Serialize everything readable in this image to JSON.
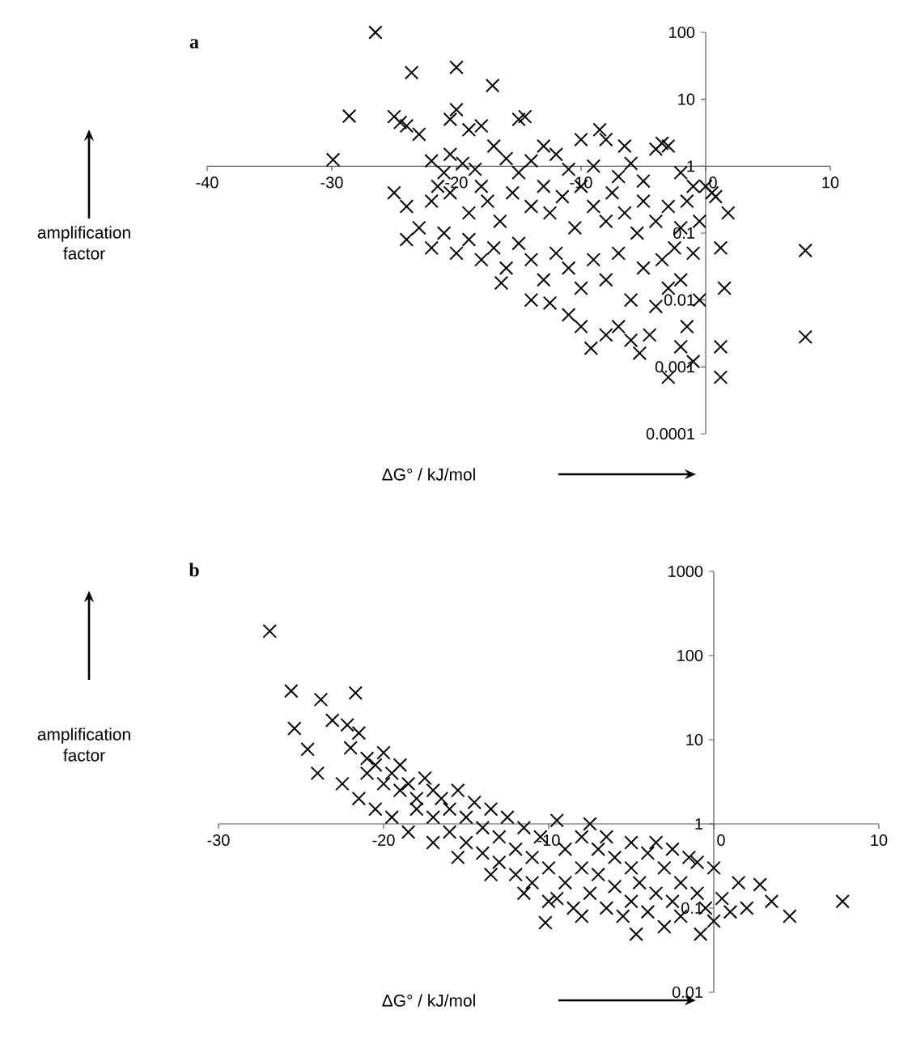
{
  "chart_data": [
    {
      "type": "scatter",
      "title": "a",
      "xlabel": "ΔG° / kJ/mol",
      "ylabel": "amplification factor",
      "log": "y",
      "marker": "cross",
      "xlim": [
        -40,
        10
      ],
      "ylim": [
        0.0001,
        100
      ],
      "xticks": [
        -40,
        -30,
        -20,
        -10,
        0,
        10
      ],
      "yticks": [
        0.0001,
        0.001,
        0.01,
        0.1,
        1,
        10,
        100
      ],
      "series": [
        {
          "color": "#000000",
          "x": [
            -26.5,
            -23.6,
            -20,
            -17.1,
            -28.6,
            -29.9,
            -25,
            -24.5,
            -24,
            -23,
            -20.5,
            -20,
            -19,
            -18,
            -17,
            -15,
            -14.5,
            -13,
            -12,
            -10,
            -8.5,
            -8,
            -6.5,
            -4,
            -3.5,
            -3,
            -22,
            -21,
            -20.5,
            -19.5,
            -18.5,
            -16,
            -15,
            -14,
            -11,
            -9,
            -7,
            -6,
            -5,
            -2,
            -1,
            0,
            0.8,
            1.8,
            -25,
            -24,
            -22,
            -21.5,
            -20.5,
            -19,
            -18,
            -17.5,
            -16.5,
            -15.5,
            -14,
            -13,
            -12.5,
            -11.5,
            -10.5,
            -10,
            -9,
            -8,
            -7.5,
            -6.5,
            -5.5,
            -5,
            -4,
            -3,
            -2,
            -1.5,
            -0.5,
            -24,
            -23,
            -22,
            -21,
            -20,
            -19,
            -18,
            -17,
            -16,
            -15,
            -14,
            -13,
            -12,
            -11,
            -10,
            -9,
            -8,
            -7,
            -6,
            -5,
            -4,
            -3.5,
            -3,
            -2.5,
            -2,
            -1,
            -0.5,
            -16.4,
            -14,
            -12.5,
            -11,
            -10,
            -9.2,
            -8,
            -7,
            -6,
            -5.3,
            -4.5,
            -3,
            -2,
            -1.5,
            -1,
            1.2,
            1.2,
            1.2,
            8,
            8,
            0.5,
            1.5
          ],
          "values": [
            100,
            25,
            30,
            16,
            5.6,
            1.25,
            5.5,
            4.5,
            4,
            3,
            5,
            7,
            3.5,
            4,
            2,
            5,
            5.5,
            2,
            1.5,
            2.5,
            3.5,
            2.5,
            2,
            1.8,
            2.2,
            2,
            1.2,
            0.8,
            1.5,
            1.1,
            0.9,
            1.3,
            0.8,
            1.2,
            0.9,
            1,
            0.7,
            1.1,
            0.6,
            0.8,
            0.5,
            0.5,
            0.35,
            0.2,
            0.4,
            0.25,
            0.3,
            0.5,
            0.4,
            0.2,
            0.5,
            0.3,
            0.15,
            0.4,
            0.25,
            0.5,
            0.2,
            0.35,
            0.12,
            0.5,
            0.25,
            0.15,
            0.4,
            0.2,
            0.1,
            0.3,
            0.15,
            0.25,
            0.12,
            0.3,
            0.15,
            0.08,
            0.12,
            0.06,
            0.1,
            0.05,
            0.08,
            0.04,
            0.06,
            0.03,
            0.07,
            0.04,
            0.02,
            0.05,
            0.03,
            0.015,
            0.04,
            0.02,
            0.05,
            0.01,
            0.03,
            0.008,
            0.04,
            0.015,
            0.06,
            0.02,
            0.05,
            0.01,
            0.018,
            0.01,
            0.009,
            0.006,
            0.004,
            0.0019,
            0.003,
            0.004,
            0.0025,
            0.0016,
            0.003,
            0.0007,
            0.002,
            0.004,
            0.0012,
            0.06,
            0.002,
            0.0007,
            0.055,
            0.0028,
            0.4,
            0.015
          ]
        }
      ]
    },
    {
      "type": "scatter",
      "title": "b",
      "xlabel": "ΔG° / kJ/mol",
      "ylabel": "amplification factor",
      "log": "y",
      "marker": "cross",
      "xlim": [
        -30,
        10
      ],
      "ylim": [
        0.01,
        1000
      ],
      "xticks": [
        -30,
        -20,
        -10,
        0,
        10
      ],
      "yticks": [
        0.01,
        0.1,
        1,
        10,
        100,
        1000
      ],
      "series": [
        {
          "color": "#000000",
          "x": [
            -26.9,
            -25.6,
            -25.4,
            -24.6,
            -23.8,
            -21.7,
            -23.1,
            -22.2,
            -21.5,
            -21,
            -22,
            -21,
            -20.5,
            -20,
            -20,
            -19.5,
            -19,
            -19,
            -18.5,
            -18,
            -18,
            -17.5,
            -17,
            -17,
            -16.5,
            -16,
            -16,
            -15.5,
            -15,
            -15,
            -14.5,
            -14,
            -14,
            -13.5,
            -13,
            -13,
            -12.5,
            -12,
            -12,
            -11.5,
            -11,
            -11,
            -10.5,
            -10.2,
            -10,
            -10,
            -9.5,
            -9,
            -9,
            -8.5,
            -8,
            -8,
            -8,
            -7.5,
            -7,
            -7,
            -6.5,
            -6,
            -6,
            -5.5,
            -5,
            -5,
            -5,
            -4.7,
            -4.5,
            -4,
            -4,
            -3.5,
            -3,
            -3,
            -2.5,
            -2,
            -2,
            -1.5,
            -1,
            -0.8,
            -0.5,
            0,
            0,
            0.5,
            1,
            1.5,
            2,
            2.8,
            3.5,
            4.6,
            7.8,
            -24,
            -22.5,
            -21.5,
            -20.5,
            -19.5,
            -18.5,
            -17,
            -15.5,
            -13.5,
            -11.5,
            -9.5,
            -6.5,
            -3.5,
            -2.5,
            -1,
            -7.5
          ],
          "values": [
            195,
            38,
            13.6,
            7.7,
            30,
            36,
            17,
            15,
            12,
            6,
            8,
            4,
            5,
            3,
            7,
            4,
            2.5,
            5,
            3,
            2,
            1.5,
            3.5,
            2.5,
            1.2,
            2,
            1.5,
            0.8,
            2.5,
            1.2,
            0.6,
            1.8,
            0.9,
            0.45,
            1.5,
            0.7,
            0.35,
            1.2,
            0.5,
            0.25,
            0.9,
            0.4,
            0.2,
            0.7,
            0.067,
            0.3,
            0.12,
            1.1,
            0.5,
            0.2,
            0.1,
            0.7,
            0.3,
            0.08,
            0.15,
            0.5,
            0.25,
            0.1,
            0.4,
            0.18,
            0.08,
            0.6,
            0.3,
            0.12,
            0.049,
            0.2,
            0.45,
            0.09,
            0.15,
            0.3,
            0.06,
            0.12,
            0.2,
            0.08,
            0.4,
            0.15,
            0.049,
            0.1,
            0.3,
            0.07,
            0.13,
            0.09,
            0.2,
            0.1,
            0.19,
            0.12,
            0.08,
            0.12,
            4,
            3,
            2,
            1.5,
            1.2,
            0.8,
            0.6,
            0.4,
            0.25,
            0.15,
            0.13,
            0.7,
            0.6,
            0.5,
            0.35,
            1
          ]
        }
      ]
    }
  ]
}
